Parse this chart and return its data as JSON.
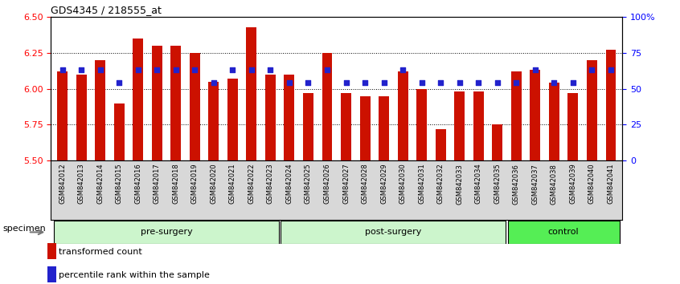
{
  "title": "GDS4345 / 218555_at",
  "samples": [
    "GSM842012",
    "GSM842013",
    "GSM842014",
    "GSM842015",
    "GSM842016",
    "GSM842017",
    "GSM842018",
    "GSM842019",
    "GSM842020",
    "GSM842021",
    "GSM842022",
    "GSM842023",
    "GSM842024",
    "GSM842025",
    "GSM842026",
    "GSM842027",
    "GSM842028",
    "GSM842029",
    "GSM842030",
    "GSM842031",
    "GSM842032",
    "GSM842033",
    "GSM842034",
    "GSM842035",
    "GSM842036",
    "GSM842037",
    "GSM842038",
    "GSM842039",
    "GSM842040",
    "GSM842041"
  ],
  "red_values": [
    6.12,
    6.1,
    6.2,
    5.9,
    6.35,
    6.3,
    6.3,
    6.25,
    6.05,
    6.07,
    6.43,
    6.1,
    6.1,
    5.97,
    6.25,
    5.97,
    5.95,
    5.95,
    6.12,
    6.0,
    5.72,
    5.98,
    5.98,
    5.75,
    6.12,
    6.13,
    6.04,
    5.97,
    6.2,
    6.27
  ],
  "blue_values": [
    63,
    63,
    63,
    54,
    63,
    63,
    63,
    63,
    54,
    63,
    63,
    63,
    54,
    54,
    63,
    54,
    54,
    54,
    63,
    54,
    54,
    54,
    54,
    54,
    54,
    63,
    54,
    54,
    63,
    63
  ],
  "y_min": 5.5,
  "y_max": 6.5,
  "y_ticks": [
    5.5,
    5.75,
    6.0,
    6.25,
    6.5
  ],
  "right_y_ticks": [
    0,
    25,
    50,
    75,
    100
  ],
  "right_y_labels": [
    "0",
    "25",
    "50",
    "75",
    "100%"
  ],
  "bar_color": "#cc1100",
  "dot_color": "#2222cc",
  "groups": [
    {
      "label": "pre-surgery",
      "start": 0,
      "end": 11,
      "color": "#ccf5cc"
    },
    {
      "label": "post-surgery",
      "start": 12,
      "end": 23,
      "color": "#ccf5cc"
    },
    {
      "label": "control",
      "start": 24,
      "end": 29,
      "color": "#55ee55"
    }
  ],
  "xlabel_text": "specimen",
  "legend": [
    {
      "color": "#cc1100",
      "label": "transformed count"
    },
    {
      "color": "#2222cc",
      "label": "percentile rank within the sample"
    }
  ]
}
